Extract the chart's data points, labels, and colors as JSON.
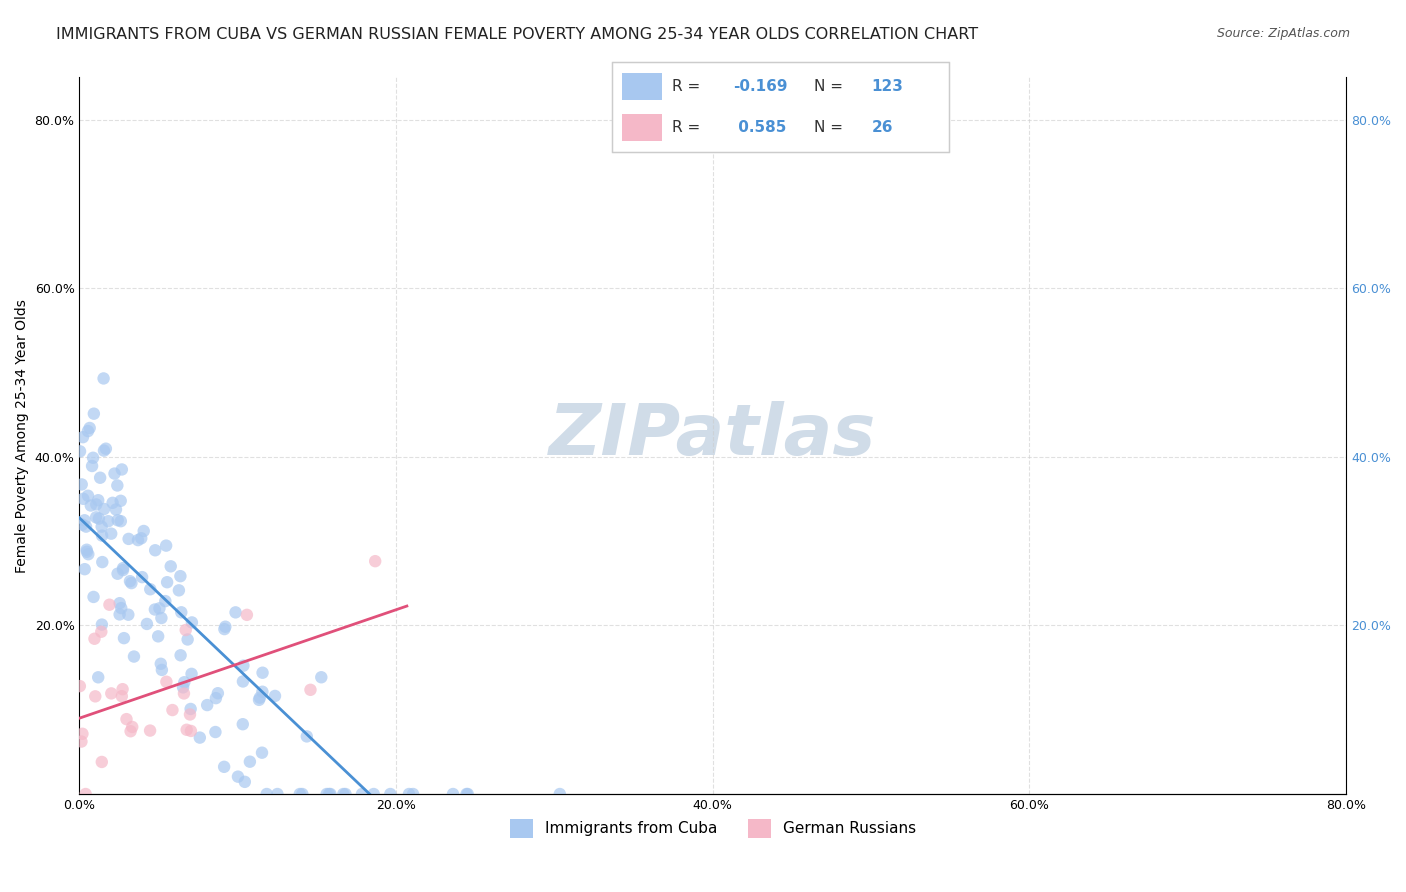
{
  "title": "IMMIGRANTS FROM CUBA VS GERMAN RUSSIAN FEMALE POVERTY AMONG 25-34 YEAR OLDS CORRELATION CHART",
  "source": "Source: ZipAtlas.com",
  "ylabel": "Female Poverty Among 25-34 Year Olds",
  "xlabel": "",
  "xlim": [
    0.0,
    0.8
  ],
  "ylim": [
    0.0,
    0.85
  ],
  "xticks": [
    0.0,
    0.2,
    0.4,
    0.6,
    0.8
  ],
  "yticks": [
    0.0,
    0.2,
    0.4,
    0.6,
    0.8
  ],
  "xticklabels": [
    "0.0%",
    "20.0%",
    "40.0%",
    "60.0%",
    "80.0%"
  ],
  "yticklabels": [
    "",
    "20.0%",
    "40.0%",
    "60.0%",
    "80.0%"
  ],
  "legend1_label": "R = -0.169   N = 123",
  "legend2_label": "R =  0.585   N =  26",
  "legend_series1": "Immigrants from Cuba",
  "legend_series2": "German Russians",
  "color_cuba": "#a8c8f0",
  "color_german": "#f5b8c8",
  "line_color_cuba": "#4a90d4",
  "line_color_german": "#e0507a",
  "watermark": "ZIPatlas",
  "watermark_color": "#d0dce8",
  "background_color": "#ffffff",
  "R_cuba": -0.169,
  "N_cuba": 123,
  "R_german": 0.585,
  "N_german": 26,
  "seed_cuba": 42,
  "seed_german": 99,
  "dot_size": 80,
  "dot_alpha": 0.7,
  "grid_color": "#cccccc",
  "grid_linestyle": "--",
  "grid_alpha": 0.6,
  "title_fontsize": 11.5,
  "axis_fontsize": 10,
  "tick_fontsize": 9,
  "legend_fontsize": 11
}
